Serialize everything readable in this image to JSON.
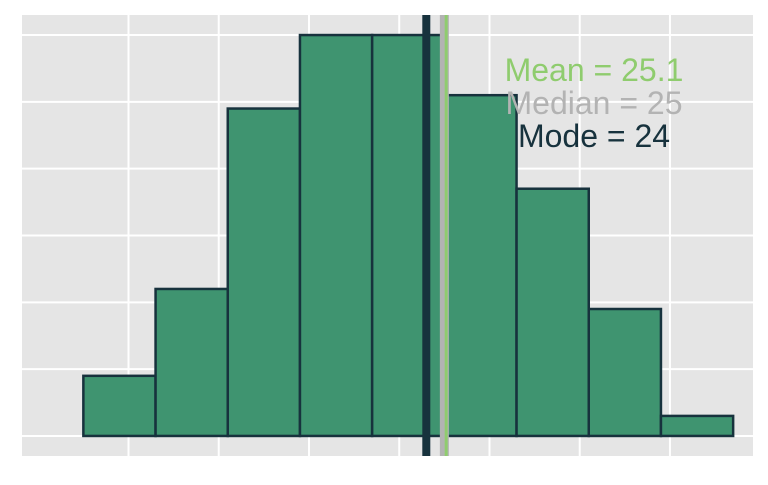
{
  "chart_data": {
    "type": "histogram",
    "bins": [
      {
        "x0": 5,
        "x1": 9,
        "count": 9
      },
      {
        "x0": 9,
        "x1": 13,
        "count": 22
      },
      {
        "x0": 13,
        "x1": 17,
        "count": 49
      },
      {
        "x0": 17,
        "x1": 21,
        "count": 60
      },
      {
        "x0": 21,
        "x1": 25,
        "count": 60
      },
      {
        "x0": 25,
        "x1": 29,
        "count": 51
      },
      {
        "x0": 29,
        "x1": 33,
        "count": 37
      },
      {
        "x0": 33,
        "x1": 37,
        "count": 19
      },
      {
        "x0": 37,
        "x1": 41,
        "count": 3
      }
    ],
    "xlim": [
      1.6,
      42.1
    ],
    "ylim": [
      -3,
      63
    ],
    "x_gridlines": [
      7.5,
      12.5,
      17.5,
      22.5,
      27.5,
      32.5,
      37.5,
      42.5
    ],
    "y_gridlines": [
      0,
      10,
      20,
      30,
      40,
      50,
      60
    ],
    "grid": true,
    "reference_lines": [
      {
        "name": "Mode",
        "value": 24.0,
        "color": "#17323d"
      },
      {
        "name": "Median",
        "value": 25.0,
        "color": "#b3b3b3"
      },
      {
        "name": "Mean",
        "value": 25.1,
        "color": "#8fcc6e"
      }
    ],
    "annotations": [
      {
        "text": "Mean = 25.1",
        "color": "#8fcc6e"
      },
      {
        "text": "Median = 25",
        "color": "#b3b3b3"
      },
      {
        "text": "Mode = 24",
        "color": "#17323d"
      }
    ],
    "bar_fill": "#3f9470",
    "bar_stroke": "#17323d",
    "panel_background": "#e5e5e5"
  }
}
